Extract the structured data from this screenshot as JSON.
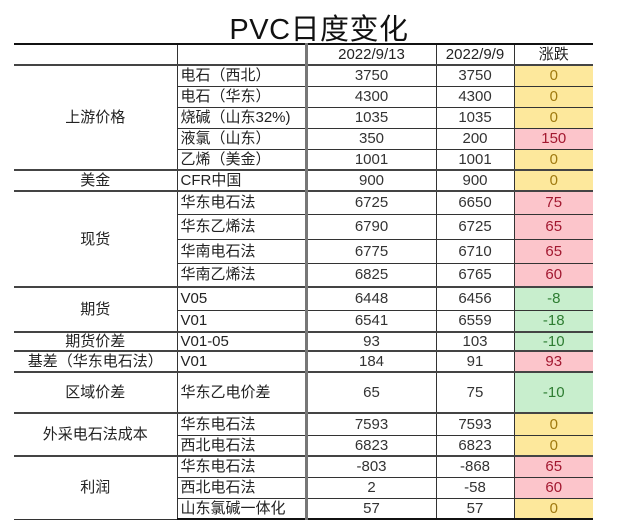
{
  "title": "PVC日度变化",
  "header": {
    "blank1": "",
    "blank2": "",
    "date_current": "2022/9/13",
    "date_prev": "2022/9/9",
    "change": "涨跌"
  },
  "colors": {
    "zero_bg": "#fde89c",
    "up_bg": "#fcc5cb",
    "down_bg": "#c8eecd",
    "negative_text": "#f02f3a"
  },
  "groups": [
    {
      "category": "上游价格",
      "rows": [
        {
          "item": "电石（西北）",
          "current": "3750",
          "prev": "3750",
          "change": "0"
        },
        {
          "item": "电石（华东）",
          "current": "4300",
          "prev": "4300",
          "change": "0"
        },
        {
          "item": "烧碱（山东32%)",
          "current": "1035",
          "prev": "1035",
          "change": "0"
        },
        {
          "item": "液氯（山东）",
          "current": "350",
          "prev": "200",
          "change": "150"
        },
        {
          "item": "乙烯（美金）",
          "current": "1001",
          "prev": "1001",
          "change": "0"
        }
      ]
    },
    {
      "category": "美金",
      "rows": [
        {
          "item": "CFR中国",
          "current": "900",
          "prev": "900",
          "change": "0"
        }
      ]
    },
    {
      "category": "现货",
      "rows": [
        {
          "item": "华东电石法",
          "current": "6725",
          "prev": "6650",
          "change": "75"
        },
        {
          "item": "华东乙烯法",
          "current": "6790",
          "prev": "6725",
          "change": "65"
        },
        {
          "item": "华南电石法",
          "current": "6775",
          "prev": "6710",
          "change": "65"
        },
        {
          "item": "华南乙烯法",
          "current": "6825",
          "prev": "6765",
          "change": "60"
        }
      ]
    },
    {
      "category": "期货",
      "rows": [
        {
          "item": "V05",
          "current": "6448",
          "prev": "6456",
          "change": "-8"
        },
        {
          "item": "V01",
          "current": "6541",
          "prev": "6559",
          "change": "-18"
        }
      ]
    },
    {
      "category": "期货价差",
      "rows": [
        {
          "item": "V01-05",
          "current": "93",
          "prev": "103",
          "change": "-10"
        }
      ]
    },
    {
      "category": "基差（华东电石法）",
      "rows": [
        {
          "item": "V01",
          "current": "184",
          "prev": "91",
          "change": "93"
        }
      ]
    },
    {
      "category": "区域价差",
      "rows": [
        {
          "item": "华东乙电价差",
          "current": "65",
          "prev": "75",
          "change": "-10"
        }
      ]
    },
    {
      "category": "外采电石法成本",
      "rows": [
        {
          "item": "华东电石法",
          "current": "7593",
          "prev": "7593",
          "change": "0"
        },
        {
          "item": "西北电石法",
          "current": "6823",
          "prev": "6823",
          "change": "0"
        }
      ]
    },
    {
      "category": "利润",
      "rows": [
        {
          "item": "华东电石法",
          "current": "-803",
          "prev": "-868",
          "change": "65"
        },
        {
          "item": "西北电石法",
          "current": "2",
          "prev": "-58",
          "change": "60"
        },
        {
          "item": "山东氯碱一体化",
          "current": "57",
          "prev": "57",
          "change": "0"
        }
      ]
    }
  ]
}
